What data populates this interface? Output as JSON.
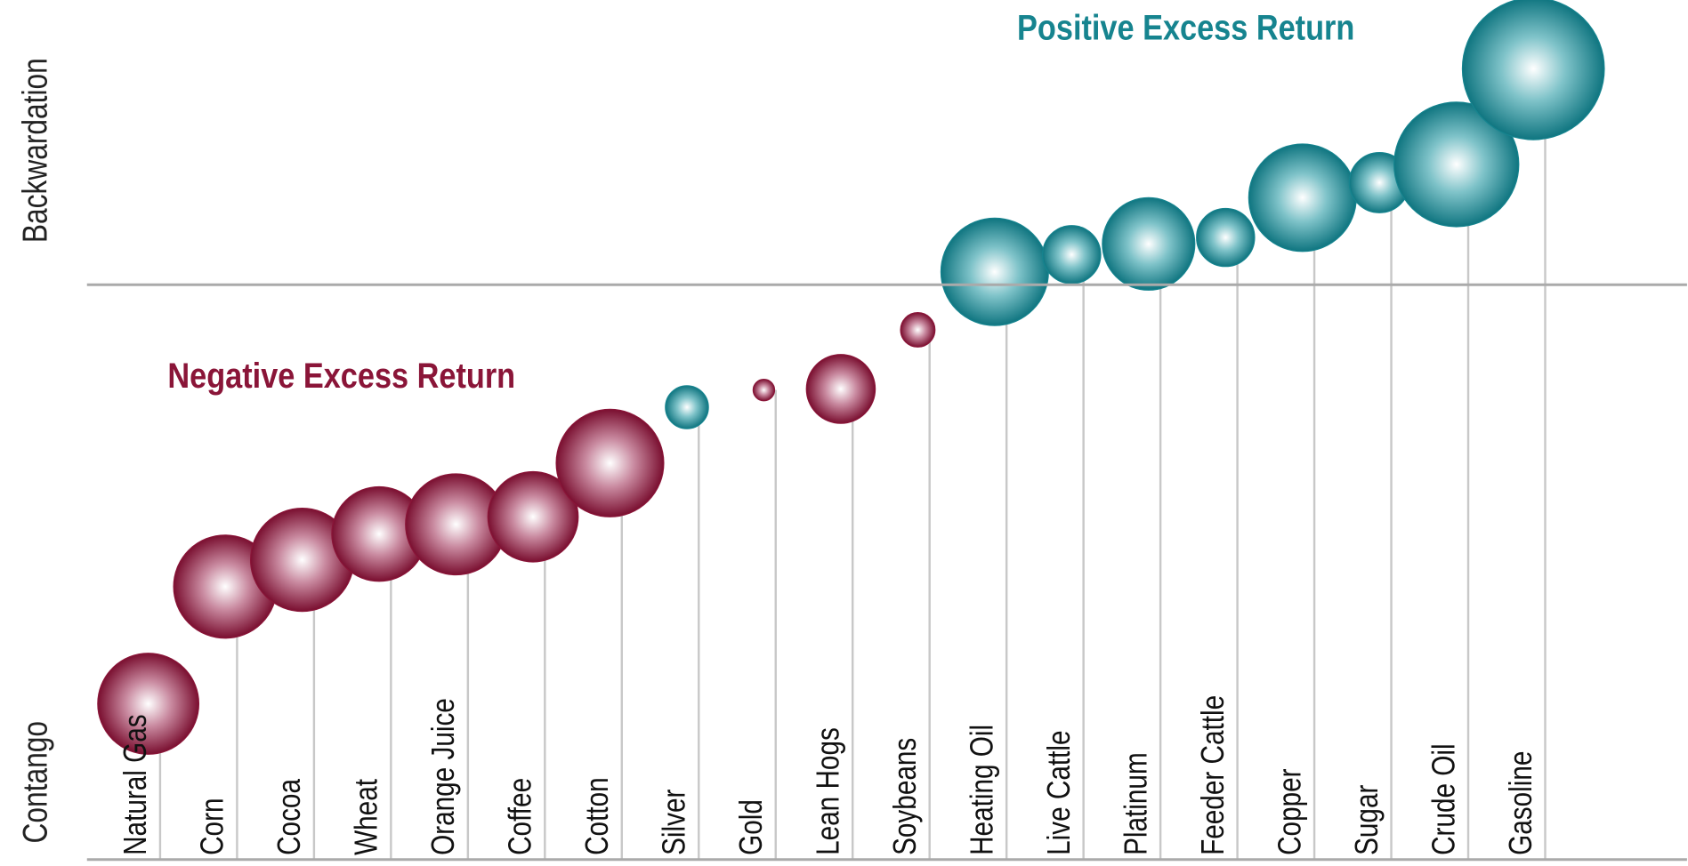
{
  "chart_data": {
    "type": "bubble",
    "y_top_label": "Backwardation",
    "y_bottom_label": "Contango",
    "categories": [
      "Natural Gas",
      "Corn",
      "Cocoa",
      "Wheat",
      "Orange Juice",
      "Coffee",
      "Cotton",
      "Silver",
      "Gold",
      "Lean Hogs",
      "Soybeans",
      "Heating Oil",
      "Live Cattle",
      "Platinum",
      "Feeder Cattle",
      "Copper",
      "Sugar",
      "Crude Oil",
      "Gasoline"
    ],
    "ylim": [
      -5.35,
      2.65
    ],
    "series": [
      {
        "name": "Negative Excess Return",
        "color": "#8a1538",
        "values": [
          -3.9,
          -2.81,
          -2.56,
          -2.32,
          -2.23,
          -2.16,
          -1.66,
          null,
          -0.98,
          -0.97,
          -0.42,
          null,
          null,
          null,
          null,
          null,
          null,
          null,
          null
        ],
        "sizes": [
          47,
          48,
          48,
          44,
          47,
          42,
          50,
          null,
          10,
          32,
          16,
          null,
          null,
          null,
          null,
          null,
          null,
          null,
          null
        ]
      },
      {
        "name": "Positive Excess Return",
        "color": "#16848f",
        "values": [
          null,
          null,
          null,
          null,
          null,
          null,
          null,
          -1.14,
          null,
          null,
          null,
          0.12,
          0.28,
          0.38,
          0.44,
          0.81,
          0.95,
          1.12,
          2.01
        ],
        "sizes": [
          null,
          null,
          null,
          null,
          null,
          null,
          null,
          20,
          null,
          null,
          null,
          50,
          27,
          43,
          27,
          50,
          28,
          58,
          66
        ]
      }
    ]
  }
}
